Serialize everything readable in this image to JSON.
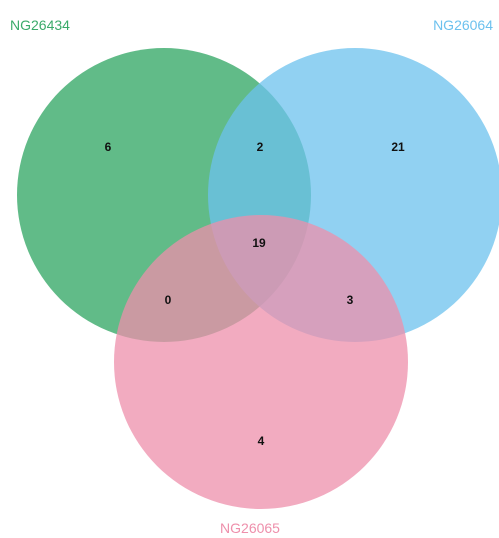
{
  "sets": [
    {
      "id": "a",
      "name": "NG26434",
      "color": "#3aaa6a"
    },
    {
      "id": "b",
      "name": "NG26064",
      "color": "#6cc1ee"
    },
    {
      "id": "c",
      "name": "NG26065",
      "color": "#ee8fab"
    }
  ],
  "regions": {
    "a_only": "6",
    "ab_only": "2",
    "b_only": "21",
    "abc": "19",
    "ac_only": "0",
    "bc_only": "3",
    "c_only": "4"
  }
}
